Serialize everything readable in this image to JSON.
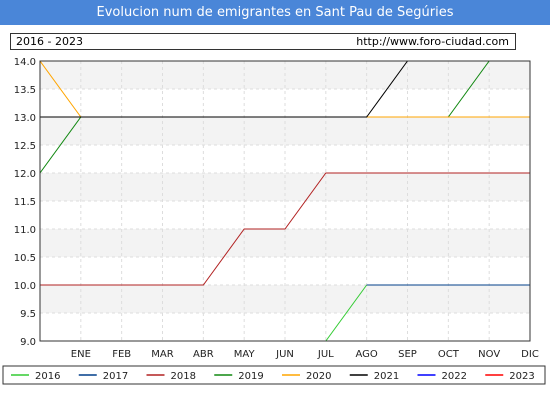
{
  "header": {
    "title": "Evolucion num de emigrantes en Sant Pau de Segúries",
    "range": "2016 - 2023",
    "url": "http://www.foro-ciudad.com"
  },
  "chart_data": {
    "type": "line",
    "title": "Evolucion num de emigrantes en Sant Pau de Segúries",
    "xlabel": "",
    "ylabel": "",
    "categories": [
      "",
      "ENE",
      "FEB",
      "MAR",
      "ABR",
      "MAY",
      "JUN",
      "JUL",
      "AGO",
      "SEP",
      "OCT",
      "NOV",
      "DIC"
    ],
    "ylim": [
      9.0,
      14.0
    ],
    "yticks": [
      9.0,
      9.5,
      10.0,
      10.5,
      11.0,
      11.5,
      12.0,
      12.5,
      13.0,
      13.5,
      14.0
    ],
    "grid": true,
    "legend_position": "bottom",
    "series": [
      {
        "name": "2016",
        "color": "#33cc33",
        "values": [
          null,
          null,
          null,
          null,
          null,
          null,
          null,
          9,
          10,
          null,
          null,
          null,
          null
        ]
      },
      {
        "name": "2017",
        "color": "#003f8a",
        "values": [
          null,
          null,
          null,
          null,
          null,
          null,
          null,
          null,
          10,
          10,
          10,
          10,
          10
        ]
      },
      {
        "name": "2018",
        "color": "#b22222",
        "values": [
          10,
          10,
          10,
          10,
          10,
          11,
          11,
          12,
          12,
          12,
          12,
          12,
          12
        ]
      },
      {
        "name": "2019",
        "color": "#118811",
        "values": [
          12,
          13,
          13,
          13,
          13,
          13,
          13,
          13,
          13,
          13,
          13,
          14,
          14
        ]
      },
      {
        "name": "2020",
        "color": "#ffa500",
        "values": [
          14,
          13,
          13,
          13,
          13,
          13,
          13,
          13,
          13,
          13,
          13,
          13,
          13
        ]
      },
      {
        "name": "2021",
        "color": "#000000",
        "values": [
          13,
          13,
          13,
          13,
          13,
          13,
          13,
          13,
          13,
          14,
          null,
          null,
          null
        ]
      },
      {
        "name": "2022",
        "color": "#0000ff",
        "values": [
          null,
          null,
          null,
          null,
          null,
          null,
          null,
          null,
          null,
          14,
          14,
          14,
          14
        ]
      },
      {
        "name": "2023",
        "color": "#ff0000",
        "values": [
          14,
          14,
          null,
          null,
          null,
          null,
          null,
          null,
          null,
          null,
          null,
          null,
          null
        ]
      }
    ]
  }
}
